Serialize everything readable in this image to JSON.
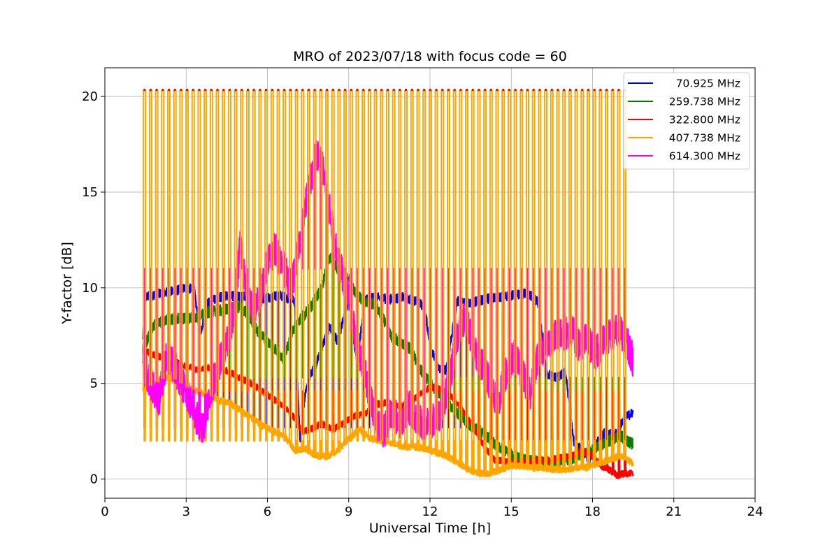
{
  "chart_data": {
    "type": "line",
    "title": "MRO of 2023/07/18 with focus code = 60",
    "xlabel": "Universal Time [h]",
    "ylabel": "Y-factor [dB]",
    "xlim": [
      0,
      24
    ],
    "ylim": [
      -1,
      21.5
    ],
    "x_ticks": [
      0,
      3,
      6,
      9,
      12,
      15,
      18,
      21,
      24
    ],
    "x_tick_labels": [
      "0",
      "3",
      "6",
      "9",
      "12",
      "15",
      "18",
      "21",
      "24"
    ],
    "y_ticks": [
      0,
      5,
      10,
      15,
      20
    ],
    "y_tick_labels": [
      "0",
      "5",
      "10",
      "15",
      "20"
    ],
    "grid": true,
    "legend_position": "top-right",
    "calibration": {
      "start": 1.45,
      "end": 19.3,
      "spacing": 0.2244,
      "high": 20.3,
      "mid": 11.0
    },
    "series": [
      {
        "name": "70.925 MHz",
        "color": "#0000ff",
        "low": 2.7,
        "x": [
          1.4,
          1.5,
          1.7,
          2.0,
          2.5,
          3.0,
          3.3,
          3.5,
          3.8,
          4.2,
          4.6,
          5.0,
          5.3,
          5.7,
          6.0,
          6.5,
          7.0,
          7.2,
          7.4,
          7.6,
          7.8,
          8.0,
          8.3,
          8.6,
          9.0,
          9.3,
          9.6,
          10.0,
          10.5,
          11.0,
          11.5,
          11.8,
          12.0,
          12.3,
          12.6,
          13.0,
          13.5,
          14.0,
          14.5,
          15.0,
          15.5,
          15.8,
          16.0,
          16.3,
          16.7,
          17.0,
          17.3,
          17.6,
          17.9,
          18.2,
          18.5,
          18.8,
          19.1,
          19.3,
          19.5
        ],
        "y": [
          7.3,
          9.5,
          9.6,
          9.7,
          9.8,
          10.0,
          9.9,
          7.5,
          9.2,
          9.5,
          9.6,
          9.5,
          9.6,
          9.4,
          9.5,
          9.6,
          9.3,
          2.0,
          4.5,
          5.5,
          6.0,
          6.8,
          8.0,
          7.2,
          9.5,
          6.0,
          9.4,
          9.5,
          9.4,
          9.5,
          9.3,
          9.0,
          7.0,
          5.8,
          5.7,
          9.3,
          9.2,
          9.4,
          9.5,
          9.6,
          9.7,
          9.5,
          9.2,
          5.5,
          5.3,
          5.6,
          2.0,
          1.5,
          1.0,
          2.0,
          2.5,
          2.2,
          3.0,
          3.3,
          3.5
        ]
      },
      {
        "name": "259.738 MHz",
        "color": "#008000",
        "low": 5.3,
        "x": [
          1.4,
          1.8,
          2.2,
          2.6,
          3.0,
          3.4,
          3.8,
          4.2,
          4.6,
          5.0,
          5.3,
          5.6,
          6.0,
          6.3,
          6.6,
          7.0,
          7.3,
          7.6,
          8.0,
          8.3,
          8.6,
          9.0,
          9.3,
          9.6,
          10.0,
          10.3,
          10.6,
          11.0,
          11.3,
          11.6,
          12.0,
          12.5,
          13.0,
          13.5,
          14.0,
          14.5,
          15.0,
          15.5,
          16.0,
          16.5,
          17.0,
          17.5,
          18.0,
          18.5,
          19.0,
          19.3,
          19.5
        ],
        "y": [
          6.8,
          8.0,
          8.3,
          8.4,
          8.4,
          8.5,
          8.7,
          8.8,
          8.9,
          9.0,
          8.6,
          7.8,
          7.2,
          6.8,
          6.3,
          8.0,
          8.5,
          9.0,
          10.0,
          11.6,
          11.0,
          10.5,
          9.6,
          9.3,
          9.1,
          8.3,
          7.4,
          7.1,
          6.8,
          5.8,
          5.0,
          4.2,
          3.5,
          2.8,
          2.4,
          1.7,
          1.3,
          1.0,
          0.9,
          0.9,
          1.0,
          1.2,
          1.5,
          1.9,
          2.3,
          2.0,
          1.8
        ]
      },
      {
        "name": "322.800 MHz",
        "color": "#ff0000",
        "low": 4.6,
        "x": [
          1.4,
          1.8,
          2.2,
          2.6,
          3.0,
          3.4,
          3.8,
          4.2,
          4.6,
          5.0,
          5.4,
          5.8,
          6.2,
          6.6,
          7.0,
          7.3,
          7.6,
          8.0,
          8.4,
          8.8,
          9.2,
          9.6,
          10.0,
          10.4,
          10.8,
          11.2,
          11.6,
          12.0,
          12.4,
          12.8,
          13.2,
          13.6,
          14.0,
          14.4,
          14.8,
          15.2,
          15.6,
          16.0,
          16.4,
          16.8,
          17.2,
          17.6,
          18.0,
          18.3,
          18.6,
          18.9,
          19.2,
          19.5
        ],
        "y": [
          6.8,
          6.5,
          6.3,
          6.1,
          5.9,
          5.7,
          5.8,
          5.9,
          5.6,
          5.3,
          5.0,
          4.6,
          4.2,
          3.8,
          3.2,
          2.5,
          2.6,
          2.9,
          2.6,
          2.9,
          3.3,
          3.4,
          3.9,
          4.0,
          3.8,
          3.9,
          4.4,
          4.8,
          4.7,
          4.3,
          3.6,
          2.7,
          1.7,
          1.0,
          0.9,
          0.8,
          0.9,
          1.0,
          1.0,
          1.1,
          1.2,
          1.5,
          1.2,
          0.7,
          0.5,
          0.2,
          0.3,
          0.3
        ]
      },
      {
        "name": "407.738 MHz",
        "color": "#ffa500",
        "low": 2.0,
        "x": [
          1.4,
          1.8,
          2.2,
          2.6,
          3.0,
          3.4,
          3.8,
          4.2,
          4.6,
          5.0,
          5.4,
          5.8,
          6.2,
          6.6,
          7.0,
          7.4,
          7.8,
          8.2,
          8.6,
          9.0,
          9.4,
          9.8,
          10.2,
          10.6,
          11.0,
          11.4,
          11.8,
          12.2,
          12.6,
          13.0,
          13.4,
          13.8,
          14.2,
          14.6,
          15.0,
          15.4,
          15.8,
          16.2,
          16.6,
          17.0,
          17.4,
          17.8,
          18.2,
          18.6,
          19.0,
          19.3,
          19.5
        ],
        "y": [
          4.6,
          5.0,
          5.3,
          5.2,
          4.8,
          4.6,
          4.4,
          4.1,
          4.0,
          3.6,
          3.2,
          2.8,
          2.5,
          2.3,
          1.5,
          1.6,
          1.2,
          1.2,
          1.5,
          2.1,
          2.6,
          2.1,
          2.0,
          1.9,
          1.7,
          1.7,
          1.6,
          1.4,
          1.2,
          0.9,
          0.5,
          0.3,
          0.3,
          0.5,
          0.7,
          0.7,
          0.6,
          0.6,
          0.5,
          0.5,
          0.6,
          0.6,
          0.8,
          1.0,
          1.2,
          1.0,
          0.8
        ]
      },
      {
        "name": "614.300 MHz",
        "color": "#ff00ff",
        "low": 11.0,
        "x": [
          1.4,
          1.7,
          2.0,
          2.3,
          2.6,
          3.0,
          3.3,
          3.6,
          3.9,
          4.2,
          4.5,
          4.8,
          5.0,
          5.2,
          5.5,
          5.8,
          6.0,
          6.3,
          6.6,
          6.9,
          7.2,
          7.5,
          7.8,
          8.0,
          8.3,
          8.6,
          9.0,
          9.3,
          9.6,
          10.0,
          10.3,
          10.6,
          10.9,
          11.2,
          11.5,
          11.8,
          12.1,
          12.4,
          12.7,
          13.0,
          13.3,
          13.6,
          13.9,
          14.2,
          14.5,
          14.8,
          15.1,
          15.4,
          15.7,
          16.0,
          16.3,
          16.6,
          16.9,
          17.2,
          17.5,
          17.8,
          18.1,
          18.4,
          18.7,
          19.0,
          19.3,
          19.5
        ],
        "y": [
          6.0,
          5.0,
          4.2,
          6.5,
          5.8,
          4.5,
          3.5,
          2.5,
          4.5,
          6.0,
          7.0,
          9.0,
          12.5,
          10.0,
          8.5,
          10.0,
          11.5,
          12.0,
          11.0,
          10.0,
          12.5,
          15.0,
          17.0,
          16.5,
          14.0,
          11.5,
          9.5,
          7.0,
          5.5,
          3.0,
          2.5,
          3.5,
          3.0,
          3.8,
          3.2,
          2.8,
          3.0,
          3.5,
          5.0,
          7.5,
          8.5,
          7.0,
          6.0,
          5.0,
          4.0,
          5.5,
          6.5,
          5.5,
          4.5,
          6.5,
          7.0,
          7.5,
          7.5,
          7.8,
          7.0,
          7.3,
          6.5,
          7.2,
          7.5,
          7.8,
          7.0,
          6.2
        ]
      }
    ]
  }
}
